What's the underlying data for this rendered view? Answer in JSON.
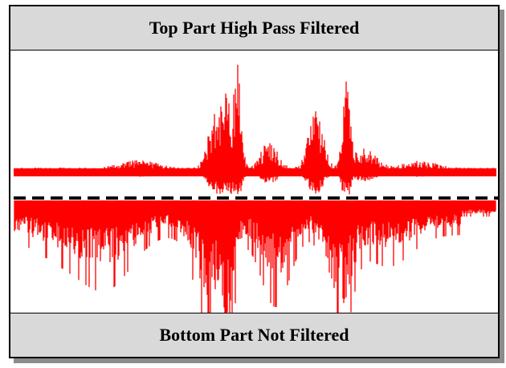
{
  "top_label": "Top Part High Pass Filtered",
  "bottom_label": "Bottom Part Not Filtered",
  "colors": {
    "waveform": "#ff0000",
    "separator": "#000000",
    "banner_bg": "#d9d9d9"
  }
}
